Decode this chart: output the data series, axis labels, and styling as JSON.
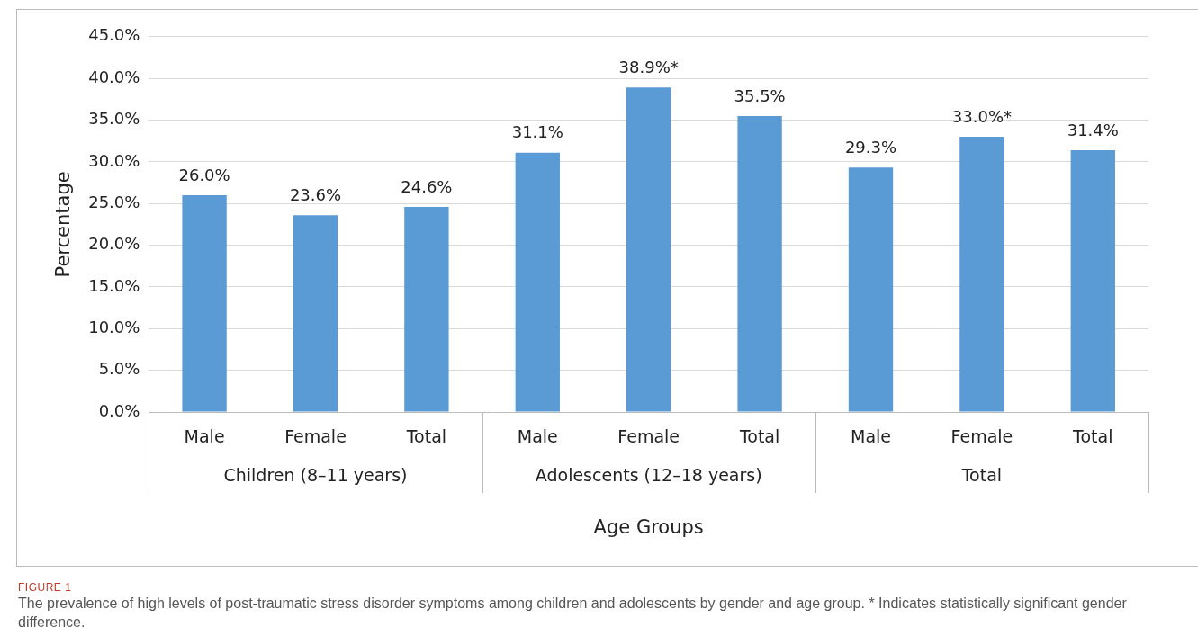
{
  "chart_data": {
    "type": "bar",
    "title": "FIGURE 1",
    "subtitle": "The prevalence of high levels of post-traumatic stress disorder symptoms among children and adolescents by gender and age group. * Indicates statistically significant gender difference.",
    "xlabel": "Age Groups",
    "ylabel": "Percentage",
    "categories": [
      "Male",
      "Female",
      "Total",
      "Male",
      "Female",
      "Total",
      "Male",
      "Female",
      "Total"
    ],
    "values": [
      26.0,
      23.6,
      24.6,
      31.1,
      38.9,
      35.5,
      29.3,
      33.0,
      31.4
    ],
    "value_labels": [
      "26.0%",
      "23.6%",
      "24.6%",
      "31.1%",
      "38.9%*",
      "35.5%",
      "29.3%",
      "33.0%*",
      "31.4%"
    ],
    "color": "#5b9bd5",
    "annotations": [
      "Children (8–11 years)",
      "Adolescents (12–18 years)",
      "Total"
    ],
    "ylim": [
      0,
      45
    ],
    "yticks": [
      {
        "value": 0,
        "label": "0.0%"
      },
      {
        "value": 5,
        "label": "5.0%"
      },
      {
        "value": 10,
        "label": "10.0%"
      },
      {
        "value": 15,
        "label": "15.0%"
      },
      {
        "value": 20,
        "label": "20.0%"
      },
      {
        "value": 25,
        "label": "25.0%"
      },
      {
        "value": 30,
        "label": "30.0%"
      },
      {
        "value": 35,
        "label": "35.0%"
      },
      {
        "value": 40,
        "label": "40.0%"
      },
      {
        "value": 45,
        "label": "45.0%"
      }
    ],
    "grid": "y",
    "legend": false
  }
}
